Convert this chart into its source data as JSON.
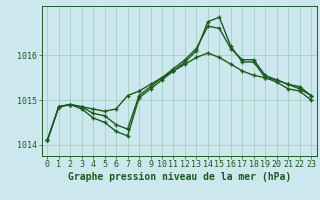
{
  "title": "Graphe pression niveau de la mer (hPa)",
  "bg_color": "#cce8ee",
  "grid_color": "#99ccbb",
  "line_color": "#1a5c1a",
  "marker_color": "#1a5c1a",
  "ylim": [
    1013.75,
    1017.1
  ],
  "yticks": [
    1014,
    1015,
    1016
  ],
  "xlim": [
    -0.5,
    23.5
  ],
  "xticks": [
    0,
    1,
    2,
    3,
    4,
    5,
    6,
    7,
    8,
    9,
    10,
    11,
    12,
    13,
    14,
    15,
    16,
    17,
    18,
    19,
    20,
    21,
    22,
    23
  ],
  "series": [
    [
      1014.1,
      1014.85,
      1014.9,
      1014.85,
      1014.8,
      1014.75,
      1014.8,
      1015.1,
      1015.2,
      1015.35,
      1015.5,
      1015.65,
      1015.8,
      1015.95,
      1016.05,
      1015.95,
      1015.8,
      1015.65,
      1015.55,
      1015.5,
      1015.45,
      1015.35,
      1015.3,
      1015.1
    ],
    [
      1014.1,
      1014.85,
      1014.9,
      1014.85,
      1014.7,
      1014.65,
      1014.45,
      1014.35,
      1015.1,
      1015.3,
      1015.5,
      1015.7,
      1015.9,
      1016.15,
      1016.65,
      1016.6,
      1016.15,
      1015.9,
      1015.9,
      1015.55,
      1015.45,
      1015.35,
      1015.25,
      1015.1
    ],
    [
      1014.1,
      1014.85,
      1014.9,
      1014.8,
      1014.6,
      1014.5,
      1014.3,
      1014.2,
      1015.05,
      1015.25,
      1015.45,
      1015.65,
      1015.85,
      1016.1,
      1016.75,
      1016.85,
      1016.2,
      1015.85,
      1015.85,
      1015.5,
      1015.4,
      1015.25,
      1015.2,
      1015.0
    ]
  ],
  "title_fontsize": 7.0,
  "tick_fontsize": 6.0,
  "marker_size": 3.5,
  "line_width": 1.0,
  "fig_width": 3.2,
  "fig_height": 2.0,
  "dpi": 100
}
